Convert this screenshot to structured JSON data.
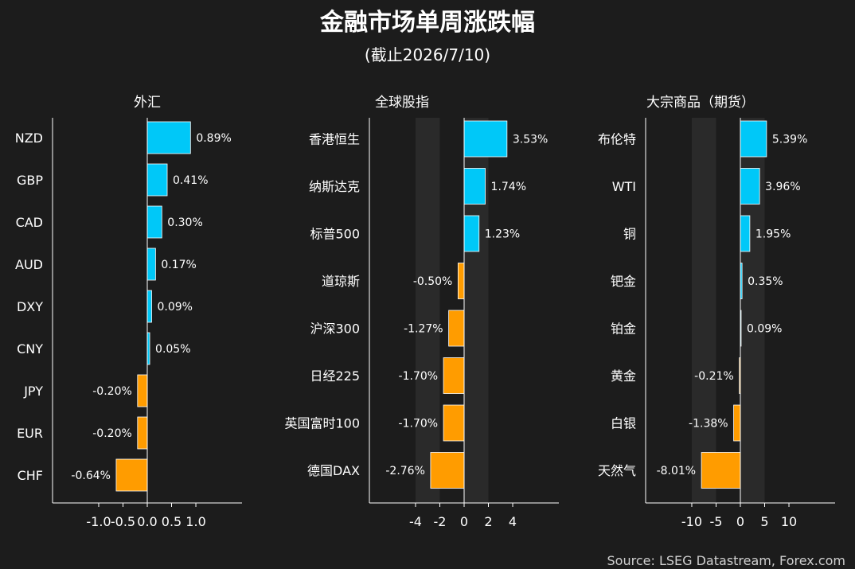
{
  "header": {
    "title": "金融市场单周涨跌幅",
    "subtitle": "(截止2026/7/10)"
  },
  "source": "Source: LSEG Datastream, Forex.com",
  "colors": {
    "background": "#1c1c1c",
    "positive": "#00c8f8",
    "negative": "#ff9c00",
    "axis": "#ffffff",
    "band": "#2a2a2a"
  },
  "chart_data": [
    {
      "type": "bar",
      "orientation": "horizontal",
      "title": "外汇",
      "categories": [
        "NZD",
        "GBP",
        "CAD",
        "AUD",
        "DXY",
        "CNY",
        "JPY",
        "EUR",
        "CHF"
      ],
      "values": [
        0.89,
        0.41,
        0.3,
        0.17,
        0.09,
        0.05,
        -0.2,
        -0.2,
        -0.64
      ],
      "value_labels": [
        "0.89%",
        "0.41%",
        "0.30%",
        "0.17%",
        "0.09%",
        "0.05%",
        "-0.20%",
        "-0.20%",
        "-0.64%"
      ],
      "xlim": [
        -1.95,
        1.95
      ],
      "xticks": [
        -1.0,
        -0.5,
        0.0,
        0.5,
        1.0
      ],
      "xtick_labels": [
        "-1.0",
        "-0.5",
        "0.0",
        "0.5",
        "1.0"
      ],
      "bands": false
    },
    {
      "type": "bar",
      "orientation": "horizontal",
      "title": "全球股指",
      "categories": [
        "香港恒生",
        "纳斯达克",
        "标普500",
        "道琼斯",
        "沪深300",
        "日经225",
        "英国富时100",
        "德国DAX"
      ],
      "values": [
        3.53,
        1.74,
        1.23,
        -0.5,
        -1.27,
        -1.7,
        -1.7,
        -2.76
      ],
      "value_labels": [
        "3.53%",
        "1.74%",
        "1.23%",
        "-0.50%",
        "-1.27%",
        "-1.70%",
        "-1.70%",
        "-2.76%"
      ],
      "xlim": [
        -7.8,
        7.8
      ],
      "xticks": [
        -4,
        -2,
        0,
        2,
        4
      ],
      "xtick_labels": [
        "-4",
        "-2",
        "0",
        "2",
        "4"
      ],
      "bands": true
    },
    {
      "type": "bar",
      "orientation": "horizontal",
      "title": "大宗商品（期货）",
      "categories": [
        "布伦特",
        "WTI",
        "铜",
        "钯金",
        "铂金",
        "黄金",
        "白银",
        "天然气"
      ],
      "values": [
        5.39,
        3.96,
        1.95,
        0.35,
        0.09,
        -0.21,
        -1.38,
        -8.01
      ],
      "value_labels": [
        "5.39%",
        "3.96%",
        "1.95%",
        "0.35%",
        "0.09%",
        "-0.21%",
        "-1.38%",
        "-8.01%"
      ],
      "xlim": [
        -19.5,
        19.5
      ],
      "xticks": [
        -10,
        -5,
        0,
        5,
        10
      ],
      "xtick_labels": [
        "-10",
        "-5",
        "0",
        "5",
        "10"
      ],
      "bands": true
    }
  ]
}
